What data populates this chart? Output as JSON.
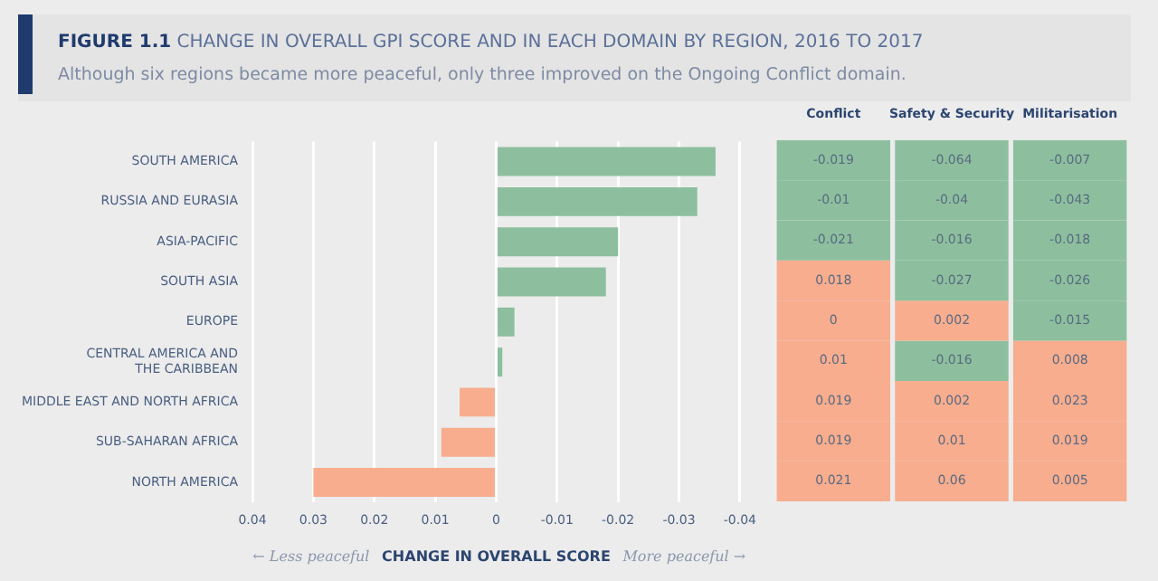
{
  "chart_data": [
    {
      "type": "bar",
      "orientation": "horizontal",
      "title": "FIGURE 1.1 CHANGE IN OVERALL GPI SCORE AND IN EACH DOMAIN BY REGION, 2016 TO 2017",
      "subtitle": "Although six regions became more peaceful, only three improved on the Ongoing Conflict domain.",
      "xlabel": "CHANGE IN OVERALL SCORE",
      "annotations": [
        "← Less peaceful",
        "More peaceful →"
      ],
      "categories": [
        "SOUTH AMERICA",
        "RUSSIA AND EURASIA",
        "ASIA-PACIFIC",
        "SOUTH ASIA",
        "EUROPE",
        "CENTRAL AMERICA AND THE CARIBBEAN",
        "MIDDLE EAST AND NORTH AFRICA",
        "SUB-SAHARAN AFRICA",
        "NORTH AMERICA"
      ],
      "values": [
        -0.036,
        -0.033,
        -0.02,
        -0.018,
        -0.003,
        -0.001,
        0.006,
        0.009,
        0.03
      ],
      "colors": [
        "#8dbf9e",
        "#8dbf9e",
        "#8dbf9e",
        "#8dbf9e",
        "#8dbf9e",
        "#8dbf9e",
        "#f7ad8e",
        "#f7ad8e",
        "#f7ad8e"
      ],
      "xlim": [
        0.04,
        -0.04
      ],
      "xticks": [
        0.04,
        0.03,
        0.02,
        0.01,
        0,
        -0.01,
        -0.02,
        -0.03,
        -0.04
      ],
      "grid": "x"
    },
    {
      "type": "heatmap",
      "categories": [
        "Conflict",
        "Safety & Security",
        "Militarisation"
      ],
      "data_labels": true,
      "tick_labels": "x",
      "y_categories": [
        null,
        null,
        null,
        null,
        null,
        null,
        null,
        null,
        null
      ],
      "cells": [
        [
          -0.019,
          -0.064,
          -0.007
        ],
        [
          -0.01,
          -0.04,
          -0.043
        ],
        [
          -0.021,
          -0.016,
          -0.018
        ],
        [
          0.018,
          -0.027,
          -0.026
        ],
        [
          0,
          0.002,
          -0.015
        ],
        [
          0.01,
          -0.016,
          0.008
        ],
        [
          0.019,
          0.002,
          0.023
        ],
        [
          0.019,
          0.01,
          0.019
        ],
        [
          0.021,
          0.06,
          0.005
        ]
      ]
    }
  ]
}
